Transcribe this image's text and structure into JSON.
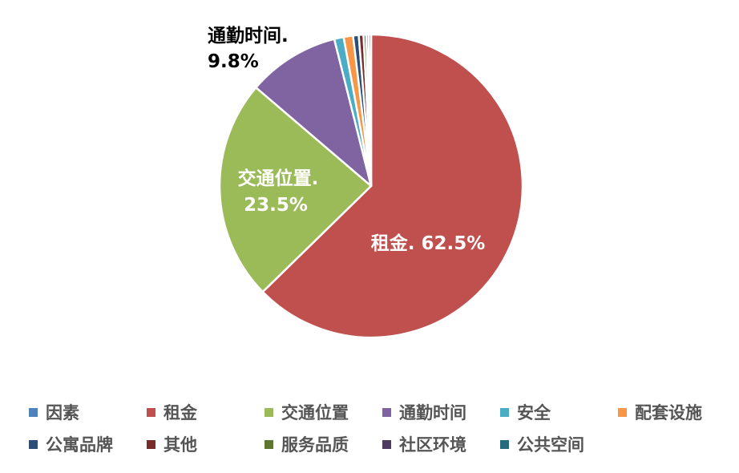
{
  "chart_data": {
    "type": "pie",
    "categories": [
      "因素",
      "租金",
      "交通位置",
      "通勤时间",
      "安全",
      "配套设施",
      "公寓品牌",
      "其他",
      "服务品质",
      "社区环境",
      "公共空间"
    ],
    "values": [
      0.0,
      62.5,
      23.5,
      9.8,
      1.0,
      1.0,
      0.6,
      0.5,
      0.3,
      0.25,
      0.25
    ],
    "colors": [
      "#4f81bd",
      "#c0504d",
      "#9bbb59",
      "#8064a2",
      "#4bacc6",
      "#f79646",
      "#2c4d75",
      "#772c2a",
      "#5f7530",
      "#4d3b62",
      "#276a7c"
    ],
    "data_labels": [
      {
        "category": "租金",
        "name": "租金.",
        "value": "62.5%",
        "text": "租金. 62.5%",
        "color": "#ffffff"
      },
      {
        "category": "交通位置",
        "name": "交通位置.",
        "value": "23.5%",
        "color": "#ffffff"
      },
      {
        "category": "通勤时间",
        "name": "通勤时间.",
        "value": "9.8%",
        "color": "#000000"
      }
    ],
    "legend": {
      "position": "bottom",
      "rows": [
        [
          "因素",
          "租金",
          "交通位置",
          "通勤时间",
          "安全",
          "配套设施"
        ],
        [
          "公寓品牌",
          "其他",
          "服务品质",
          "社区环境",
          "公共空间"
        ]
      ]
    }
  }
}
